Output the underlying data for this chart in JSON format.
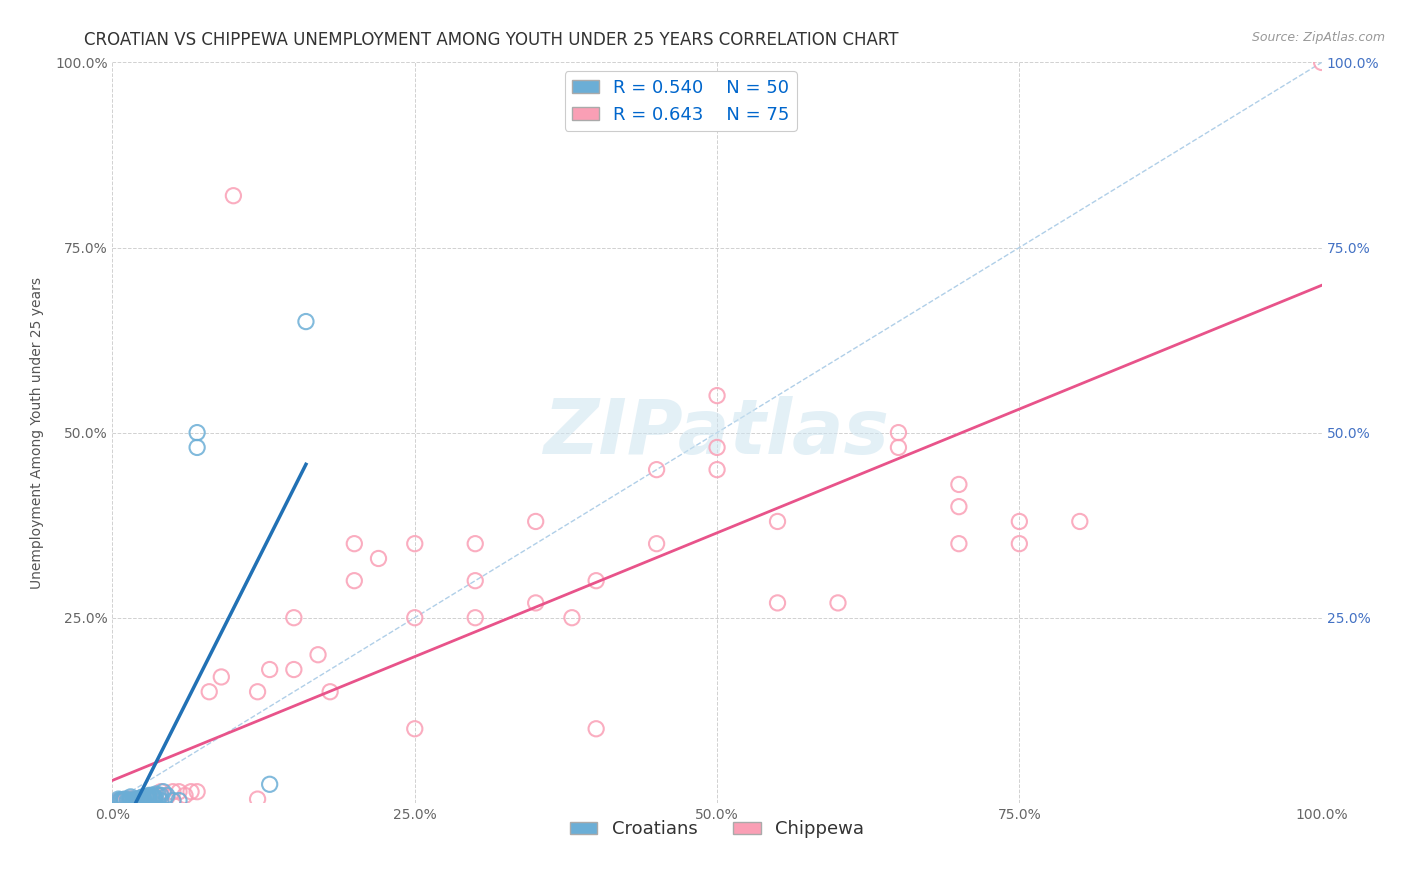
{
  "title": "CROATIAN VS CHIPPEWA UNEMPLOYMENT AMONG YOUTH UNDER 25 YEARS CORRELATION CHART",
  "source": "Source: ZipAtlas.com",
  "ylabel": "Unemployment Among Youth under 25 years",
  "xlim": [
    0.0,
    1.0
  ],
  "ylim": [
    0.0,
    1.0
  ],
  "xtick_vals": [
    0.0,
    0.25,
    0.5,
    0.75,
    1.0
  ],
  "xtick_labels": [
    "0.0%",
    "25.0%",
    "50.0%",
    "75.0%",
    "100.0%"
  ],
  "ytick_vals": [
    0.0,
    0.25,
    0.5,
    0.75,
    1.0
  ],
  "ytick_labels": [
    "",
    "25.0%",
    "50.0%",
    "75.0%",
    "100.0%"
  ],
  "yright_tick_vals": [
    0.25,
    0.5,
    0.75,
    1.0
  ],
  "yright_tick_labels": [
    "25.0%",
    "50.0%",
    "75.0%",
    "100.0%"
  ],
  "background_color": "#ffffff",
  "watermark": "ZIPatlas",
  "legend_R_croatian": "0.540",
  "legend_N_croatian": "50",
  "legend_R_chippewa": "0.643",
  "legend_N_chippewa": "75",
  "croatian_color": "#6baed6",
  "chippewa_color": "#fa9fb5",
  "croatian_line_color": "#2171b5",
  "chippewa_line_color": "#e8538a",
  "diagonal_color": "#b0cfe8",
  "croatian_points": [
    [
      0.005,
      0.005
    ],
    [
      0.006,
      0.003
    ],
    [
      0.007,
      0.004
    ],
    [
      0.008,
      0.003
    ],
    [
      0.009,
      0.003
    ],
    [
      0.01,
      0.004
    ],
    [
      0.01,
      0.005
    ],
    [
      0.012,
      0.003
    ],
    [
      0.013,
      0.003
    ],
    [
      0.014,
      0.003
    ],
    [
      0.015,
      0.003
    ],
    [
      0.015,
      0.005
    ],
    [
      0.015,
      0.008
    ],
    [
      0.016,
      0.003
    ],
    [
      0.017,
      0.003
    ],
    [
      0.018,
      0.003
    ],
    [
      0.019,
      0.003
    ],
    [
      0.02,
      0.003
    ],
    [
      0.02,
      0.005
    ],
    [
      0.021,
      0.005
    ],
    [
      0.022,
      0.003
    ],
    [
      0.022,
      0.005
    ],
    [
      0.023,
      0.005
    ],
    [
      0.024,
      0.007
    ],
    [
      0.025,
      0.003
    ],
    [
      0.025,
      0.005
    ],
    [
      0.025,
      0.008
    ],
    [
      0.026,
      0.005
    ],
    [
      0.027,
      0.008
    ],
    [
      0.028,
      0.008
    ],
    [
      0.03,
      0.005
    ],
    [
      0.03,
      0.008
    ],
    [
      0.03,
      0.01
    ],
    [
      0.032,
      0.01
    ],
    [
      0.033,
      0.01
    ],
    [
      0.034,
      0.008
    ],
    [
      0.035,
      0.005
    ],
    [
      0.035,
      0.008
    ],
    [
      0.036,
      0.012
    ],
    [
      0.038,
      0.01
    ],
    [
      0.04,
      0.003
    ],
    [
      0.04,
      0.01
    ],
    [
      0.042,
      0.015
    ],
    [
      0.045,
      0.01
    ],
    [
      0.05,
      0.003
    ],
    [
      0.055,
      0.003
    ],
    [
      0.07,
      0.48
    ],
    [
      0.07,
      0.5
    ],
    [
      0.13,
      0.025
    ],
    [
      0.16,
      0.65
    ]
  ],
  "chippewa_points": [
    [
      0.005,
      0.003
    ],
    [
      0.007,
      0.003
    ],
    [
      0.008,
      0.003
    ],
    [
      0.01,
      0.003
    ],
    [
      0.012,
      0.005
    ],
    [
      0.014,
      0.003
    ],
    [
      0.015,
      0.005
    ],
    [
      0.016,
      0.003
    ],
    [
      0.018,
      0.003
    ],
    [
      0.02,
      0.003
    ],
    [
      0.02,
      0.005
    ],
    [
      0.022,
      0.003
    ],
    [
      0.024,
      0.003
    ],
    [
      0.025,
      0.003
    ],
    [
      0.025,
      0.005
    ],
    [
      0.026,
      0.005
    ],
    [
      0.028,
      0.008
    ],
    [
      0.03,
      0.003
    ],
    [
      0.03,
      0.005
    ],
    [
      0.03,
      0.008
    ],
    [
      0.032,
      0.005
    ],
    [
      0.034,
      0.008
    ],
    [
      0.035,
      0.005
    ],
    [
      0.035,
      0.01
    ],
    [
      0.04,
      0.003
    ],
    [
      0.04,
      0.01
    ],
    [
      0.04,
      0.015
    ],
    [
      0.045,
      0.008
    ],
    [
      0.05,
      0.003
    ],
    [
      0.05,
      0.015
    ],
    [
      0.055,
      0.015
    ],
    [
      0.06,
      0.01
    ],
    [
      0.065,
      0.015
    ],
    [
      0.07,
      0.015
    ],
    [
      0.08,
      0.15
    ],
    [
      0.09,
      0.17
    ],
    [
      0.1,
      0.82
    ],
    [
      0.12,
      0.005
    ],
    [
      0.12,
      0.15
    ],
    [
      0.13,
      0.18
    ],
    [
      0.15,
      0.18
    ],
    [
      0.15,
      0.25
    ],
    [
      0.17,
      0.2
    ],
    [
      0.18,
      0.15
    ],
    [
      0.2,
      0.3
    ],
    [
      0.2,
      0.35
    ],
    [
      0.22,
      0.33
    ],
    [
      0.25,
      0.1
    ],
    [
      0.25,
      0.25
    ],
    [
      0.25,
      0.35
    ],
    [
      0.3,
      0.25
    ],
    [
      0.3,
      0.3
    ],
    [
      0.3,
      0.35
    ],
    [
      0.35,
      0.27
    ],
    [
      0.35,
      0.38
    ],
    [
      0.38,
      0.25
    ],
    [
      0.4,
      0.1
    ],
    [
      0.4,
      0.3
    ],
    [
      0.45,
      0.35
    ],
    [
      0.45,
      0.45
    ],
    [
      0.5,
      0.45
    ],
    [
      0.5,
      0.48
    ],
    [
      0.5,
      0.55
    ],
    [
      0.55,
      0.27
    ],
    [
      0.55,
      0.38
    ],
    [
      0.6,
      0.27
    ],
    [
      0.65,
      0.48
    ],
    [
      0.65,
      0.5
    ],
    [
      0.7,
      0.35
    ],
    [
      0.7,
      0.4
    ],
    [
      0.7,
      0.43
    ],
    [
      0.75,
      0.35
    ],
    [
      0.75,
      0.38
    ],
    [
      0.8,
      0.38
    ],
    [
      1.0,
      1.0
    ]
  ],
  "grid_color": "#cccccc",
  "title_fontsize": 12,
  "axis_label_fontsize": 10,
  "tick_fontsize": 10,
  "legend_fontsize": 13,
  "source_fontsize": 9
}
